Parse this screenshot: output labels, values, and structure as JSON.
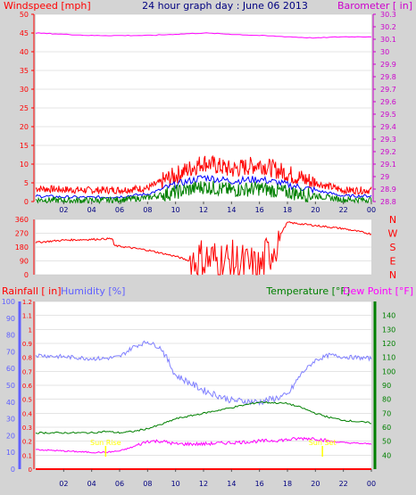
{
  "title": "24 hour graph day : June 06 2013",
  "colors": {
    "background": "#d4d4d4",
    "plot": "#ffffff",
    "wind_axis": "#ff0000",
    "baro_axis": "#cc00cc",
    "dir_axis": "#ff0000",
    "rain_axis": "#ff0000",
    "hum_axis": "#6060ff",
    "temp_axis": "#008000",
    "x_tick_label": "#000080",
    "title": "#000080",
    "sun": "#ffff00",
    "wind": "#ff0000",
    "wind_avg": "#0000ff",
    "wind_low": "#008000",
    "baro": "#ff00ff",
    "dir": "#ff0000",
    "rain": "#ff0000",
    "hum": "#8080ff",
    "temp": "#008000",
    "dew": "#ff00ff",
    "grid": "#c8c8c8"
  },
  "x_ticks": [
    "02",
    "04",
    "06",
    "08",
    "10",
    "12",
    "14",
    "16",
    "18",
    "20",
    "22",
    "00"
  ],
  "sun_labels": {
    "rise": "Sun Rise",
    "set": "Sun Set"
  },
  "chart_data": [
    {
      "type": "line",
      "panel": "wind-barometer",
      "left_axis": {
        "label": "Windspeed [mph]",
        "range": [
          0,
          50
        ],
        "ticks": [
          0,
          5,
          10,
          15,
          20,
          25,
          30,
          35,
          40,
          45,
          50
        ]
      },
      "right_axis": {
        "label": "Barometer [ in]",
        "range": [
          28.8,
          30.3
        ],
        "ticks": [
          "28.8",
          "28.9",
          "29",
          "29.1",
          "29.2",
          "29.3",
          "29.4",
          "29.5",
          "29.6",
          "29.7",
          "29.8",
          "29.9",
          "30",
          "30.1",
          "30.2",
          "30.3"
        ]
      },
      "x_hours": [
        0,
        2,
        4,
        6,
        8,
        10,
        12,
        14,
        16,
        18,
        20,
        22,
        24
      ],
      "series": [
        {
          "axis": "left",
          "role": "gust",
          "values": [
            3.5,
            3.2,
            3.0,
            3.1,
            3.6,
            7,
            10.5,
            8.5,
            10,
            7.5,
            5,
            3,
            3
          ]
        },
        {
          "axis": "left",
          "role": "average",
          "values": [
            1.5,
            1.2,
            1.1,
            1.3,
            2,
            4.5,
            6.5,
            5.5,
            6,
            4.5,
            3,
            1.5,
            1.5
          ]
        },
        {
          "axis": "left",
          "role": "low",
          "values": [
            0.5,
            0.3,
            0.3,
            0.5,
            1,
            2.5,
            4,
            3,
            3.5,
            2.5,
            1.5,
            0.5,
            0.5
          ]
        },
        {
          "axis": "right",
          "role": "barometer",
          "values": [
            30.15,
            30.14,
            30.13,
            30.13,
            30.13,
            30.14,
            30.15,
            30.14,
            30.13,
            30.12,
            30.11,
            30.12,
            30.12
          ]
        }
      ]
    },
    {
      "type": "line",
      "panel": "wind-direction",
      "left_axis": {
        "range": [
          0,
          360
        ],
        "ticks": [
          0,
          90,
          180,
          270,
          360
        ]
      },
      "right_axis": {
        "labels": [
          "N",
          "W",
          "S",
          "E",
          "N"
        ]
      },
      "x_hours": [
        0,
        2,
        4,
        5.5,
        5.6,
        8,
        10,
        11,
        12,
        14,
        16,
        18,
        20,
        22,
        24
      ],
      "series": [
        {
          "role": "direction",
          "values": [
            210,
            225,
            230,
            235,
            190,
            160,
            120,
            90,
            100,
            80,
            30,
            340,
            320,
            300,
            265
          ]
        }
      ]
    },
    {
      "type": "line",
      "panel": "rain-humidity-temperature",
      "left_axis_rain": {
        "label": "Rainfall [ in]",
        "range": [
          0,
          1.2
        ],
        "ticks": [
          "0",
          "0.1",
          "0.2",
          "0.3",
          "0.4",
          "0.5",
          "0.6",
          "0.7",
          "0.8",
          "0.9",
          "1",
          "1.1",
          "1.2"
        ]
      },
      "left_axis_humidity": {
        "label": "Humidity [%]",
        "range": [
          0,
          100
        ],
        "ticks": [
          0,
          10,
          20,
          30,
          40,
          50,
          60,
          70,
          80,
          90,
          100
        ]
      },
      "right_axis": {
        "label": "Temperature [°F]",
        "label2": "Dew Point [°F]",
        "range": [
          30,
          150
        ],
        "ticks": [
          40,
          50,
          60,
          70,
          80,
          90,
          100,
          110,
          120,
          130,
          140
        ]
      },
      "x_hours": [
        0,
        2,
        4,
        5,
        6,
        7,
        8,
        9,
        10,
        12,
        14,
        16,
        18,
        19,
        20,
        21,
        22,
        24
      ],
      "series": [
        {
          "axis": "humidity",
          "role": "humidity",
          "values": [
            68,
            67,
            66,
            66,
            67,
            73,
            76,
            72,
            56,
            47,
            41,
            40,
            44,
            57,
            65,
            68,
            67,
            66
          ]
        },
        {
          "axis": "right",
          "role": "temperature",
          "values": [
            56,
            56,
            56,
            57,
            56,
            57,
            59,
            62,
            66,
            70,
            74,
            78,
            77,
            74,
            70,
            67,
            65,
            63
          ]
        },
        {
          "axis": "right",
          "role": "dew_point",
          "values": [
            44,
            43,
            42,
            42,
            43,
            46,
            50,
            50,
            48,
            48,
            49,
            50,
            51,
            52,
            52,
            50,
            49,
            48
          ]
        },
        {
          "axis": "rain",
          "role": "rainfall",
          "values": [
            0,
            0,
            0,
            0,
            0,
            0,
            0,
            0,
            0,
            0,
            0,
            0,
            0,
            0,
            0,
            0,
            0,
            0
          ]
        }
      ],
      "sunrise_hour": 5.0,
      "sunset_hour": 20.5
    }
  ]
}
